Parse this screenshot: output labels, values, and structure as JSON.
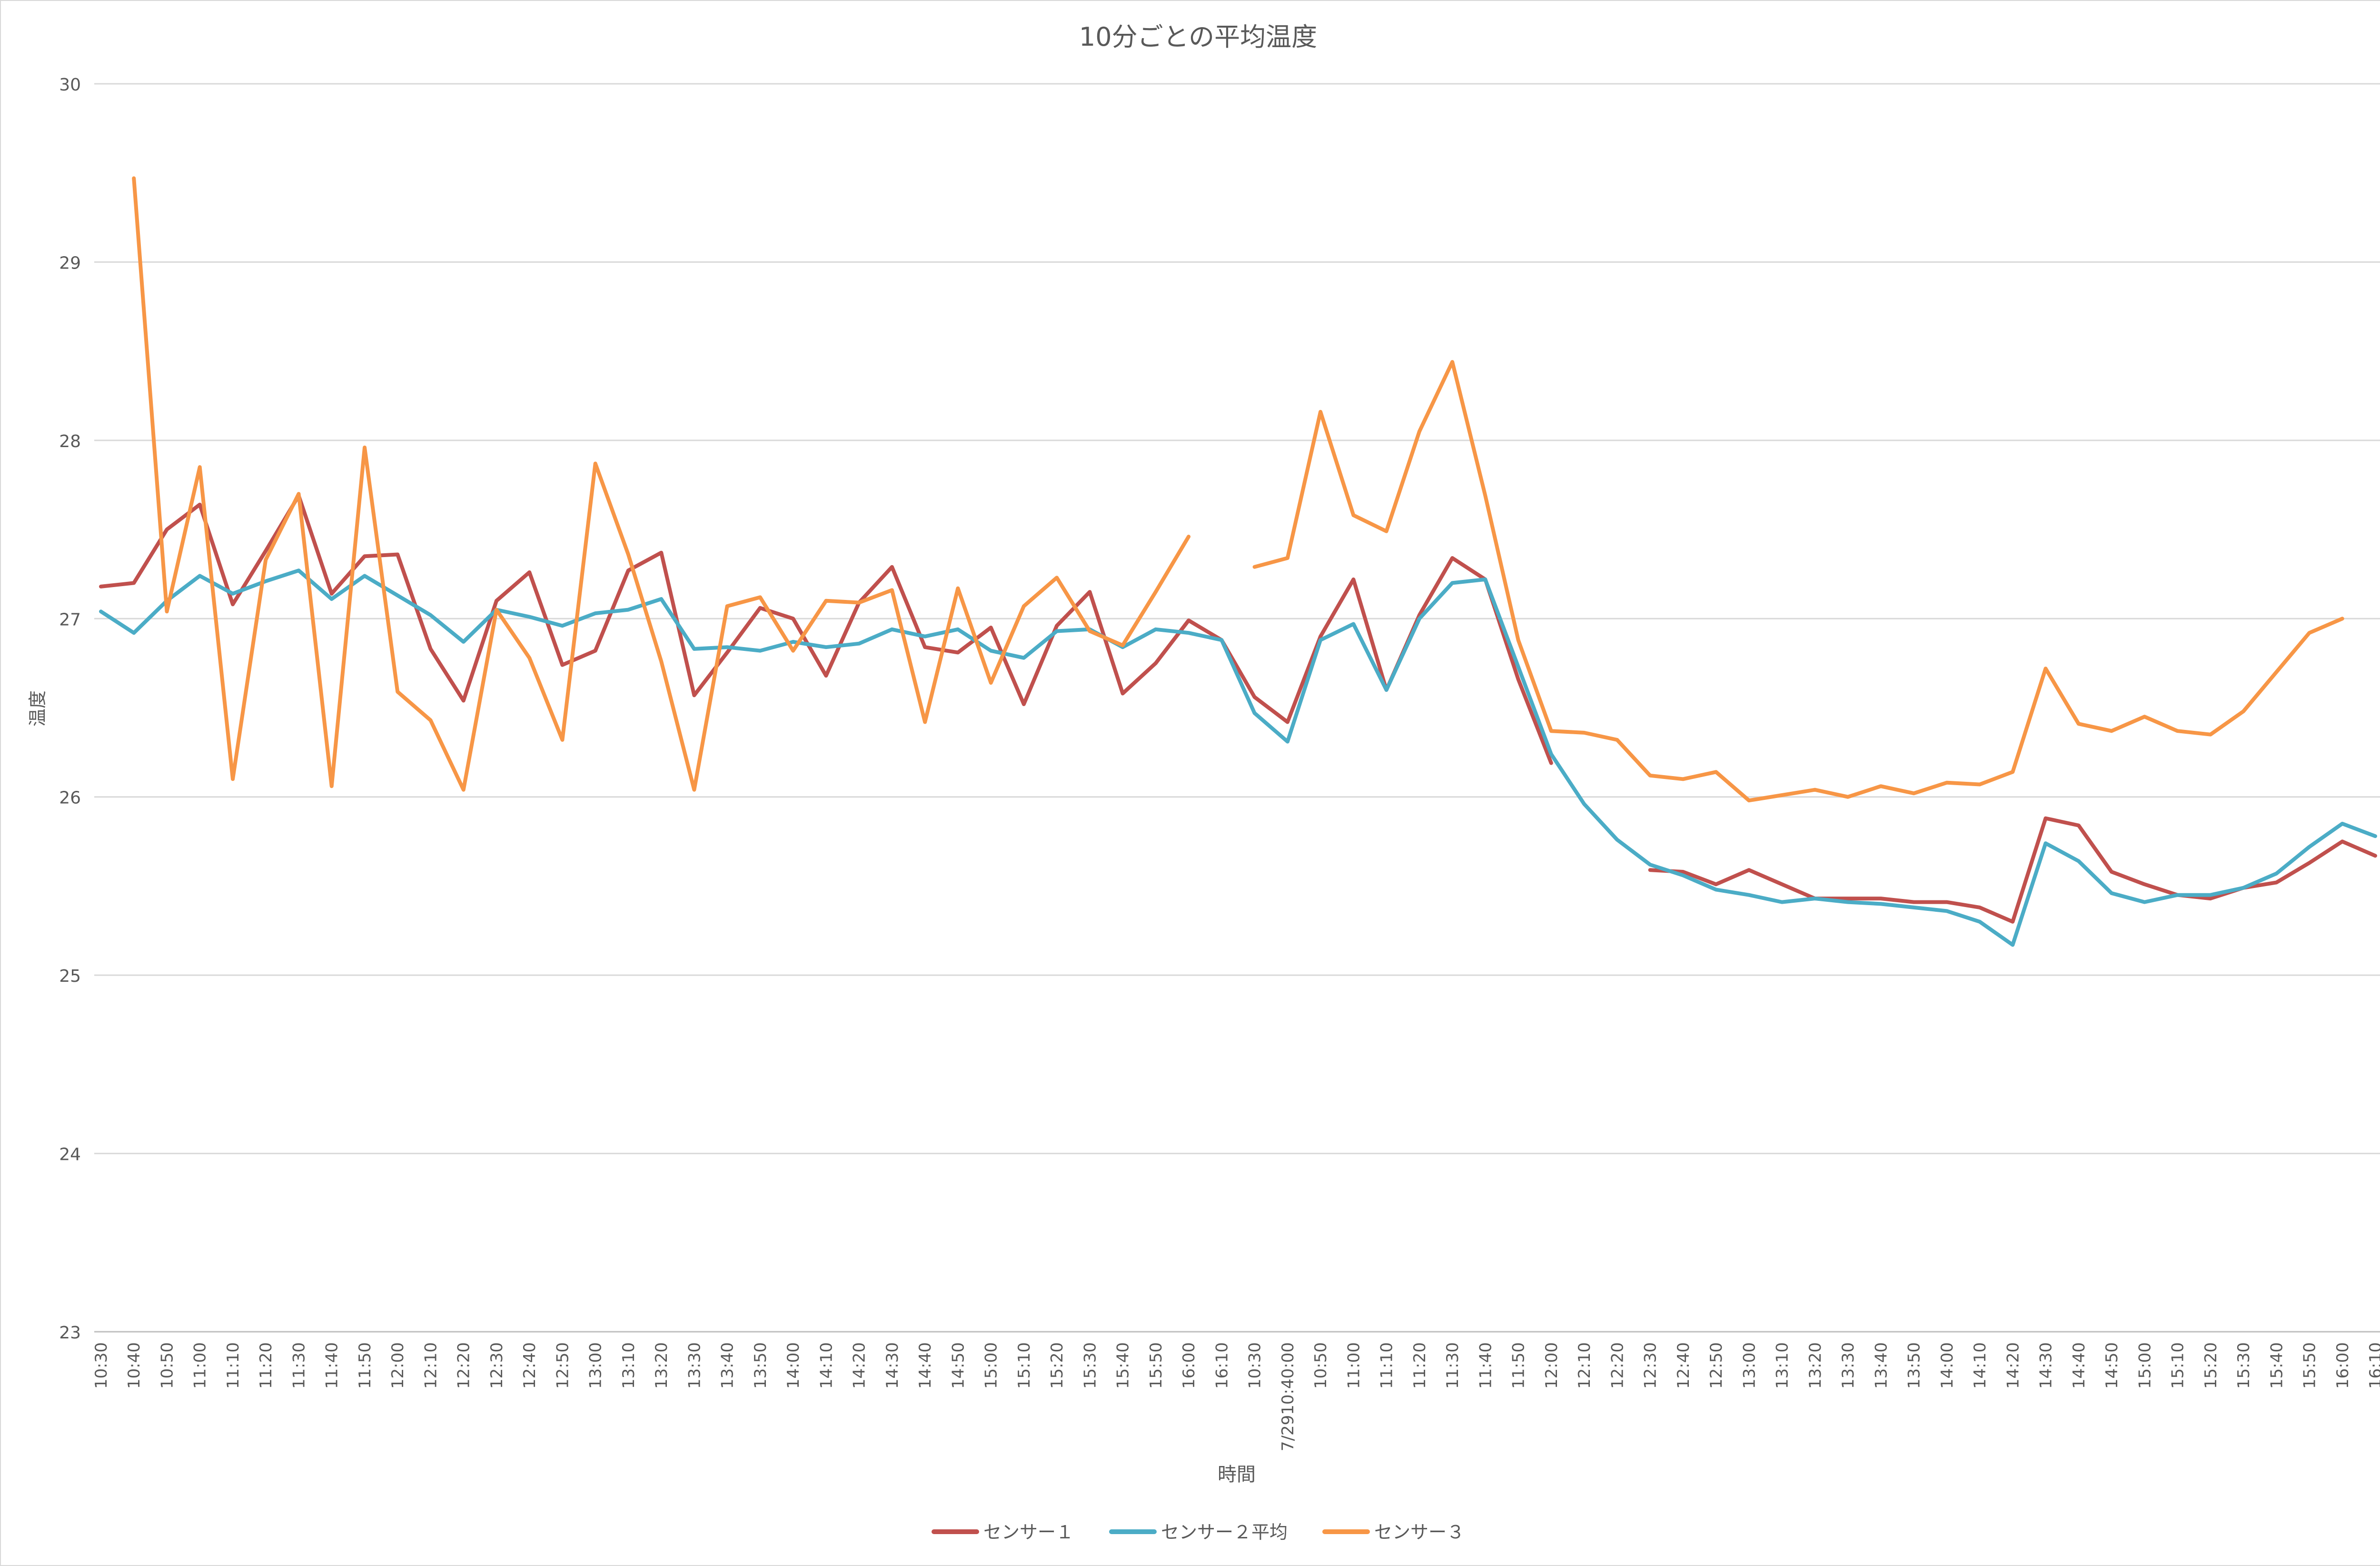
{
  "chart_data": {
    "type": "line",
    "title": "10分ごとの平均温度",
    "xlabel": "時間",
    "ylabel": "温度",
    "ylim": [
      23,
      30
    ],
    "yticks": [
      "23",
      "24",
      "25",
      "26",
      "27",
      "28",
      "29",
      "30"
    ],
    "grid": "horizontal",
    "legend_position": "bottom",
    "categories": [
      "10:30",
      "10:40",
      "10:50",
      "11:00",
      "11:10",
      "11:20",
      "11:30",
      "11:40",
      "11:50",
      "12:00",
      "12:10",
      "12:20",
      "12:30",
      "12:40",
      "12:50",
      "13:00",
      "13:10",
      "13:20",
      "13:30",
      "13:40",
      "13:50",
      "14:00",
      "14:10",
      "14:20",
      "14:30",
      "14:40",
      "14:50",
      "15:00",
      "15:10",
      "15:20",
      "15:30",
      "15:40",
      "15:50",
      "16:00",
      "16:10",
      "10:30",
      "7/2910:40:00",
      "10:50",
      "11:00",
      "11:10",
      "11:20",
      "11:30",
      "11:40",
      "11:50",
      "12:00",
      "12:10",
      "12:20",
      "12:30",
      "12:40",
      "12:50",
      "13:00",
      "13:10",
      "13:20",
      "13:30",
      "13:40",
      "13:50",
      "14:00",
      "14:10",
      "14:20",
      "14:30",
      "14:40",
      "14:50",
      "15:00",
      "15:10",
      "15:20",
      "15:30",
      "15:40",
      "15:50",
      "16:00",
      "16:10"
    ],
    "series": [
      {
        "name": "センサー１",
        "color": "#c0504d",
        "values": [
          27.18,
          27.2,
          27.5,
          27.64,
          27.08,
          27.38,
          27.69,
          27.14,
          27.35,
          27.36,
          26.83,
          26.54,
          27.1,
          27.26,
          26.74,
          26.82,
          27.27,
          27.37,
          26.57,
          26.81,
          27.06,
          27.0,
          26.68,
          27.09,
          27.29,
          26.84,
          26.81,
          26.95,
          26.52,
          26.96,
          27.15,
          26.58,
          26.75,
          26.99,
          26.88,
          26.56,
          26.42,
          26.9,
          27.22,
          26.6,
          27.02,
          27.34,
          27.22,
          26.66,
          26.19,
          null,
          null,
          25.59,
          25.58,
          25.51,
          25.59,
          25.51,
          25.43,
          25.43,
          25.43,
          25.41,
          25.41,
          25.38,
          25.3,
          25.88,
          25.84,
          25.58,
          25.51,
          25.45,
          25.43,
          25.49,
          25.52,
          25.63,
          25.75,
          25.67
        ]
      },
      {
        "name": "センサー２平均",
        "color": "#4bacc6",
        "values": [
          27.04,
          26.92,
          27.1,
          27.24,
          27.14,
          27.21,
          27.27,
          27.11,
          27.24,
          27.13,
          27.02,
          26.87,
          27.05,
          27.01,
          26.96,
          27.03,
          27.05,
          27.11,
          26.83,
          26.84,
          26.82,
          26.87,
          26.84,
          26.86,
          26.94,
          26.9,
          26.94,
          26.82,
          26.78,
          26.93,
          26.94,
          26.84,
          26.94,
          26.92,
          26.88,
          26.47,
          26.31,
          26.88,
          26.97,
          26.6,
          27.0,
          27.2,
          27.22,
          26.73,
          26.24,
          25.96,
          25.76,
          25.62,
          25.56,
          25.48,
          25.45,
          25.41,
          25.43,
          25.41,
          25.4,
          25.38,
          25.36,
          25.3,
          25.17,
          25.74,
          25.64,
          25.46,
          25.41,
          25.45,
          25.45,
          25.49,
          25.57,
          25.72,
          25.85,
          25.78
        ]
      },
      {
        "name": "センサー３",
        "color": "#f79646",
        "values": [
          null,
          29.47,
          27.04,
          27.85,
          26.1,
          27.33,
          27.7,
          26.06,
          27.96,
          26.59,
          26.43,
          26.04,
          27.05,
          26.78,
          26.32,
          27.87,
          27.36,
          26.76,
          26.04,
          27.07,
          27.12,
          26.82,
          27.1,
          27.09,
          27.16,
          26.42,
          27.17,
          26.64,
          27.07,
          27.23,
          26.93,
          26.85,
          27.15,
          27.46,
          null,
          27.29,
          27.34,
          28.16,
          27.58,
          27.49,
          28.05,
          28.44,
          27.69,
          26.88,
          26.37,
          26.36,
          26.32,
          26.12,
          26.1,
          26.14,
          25.98,
          26.01,
          26.04,
          26.0,
          26.06,
          26.02,
          26.08,
          26.07,
          26.14,
          26.72,
          26.41,
          26.37,
          26.45,
          26.37,
          26.35,
          26.48,
          26.7,
          26.92,
          27.0,
          null
        ]
      }
    ]
  }
}
